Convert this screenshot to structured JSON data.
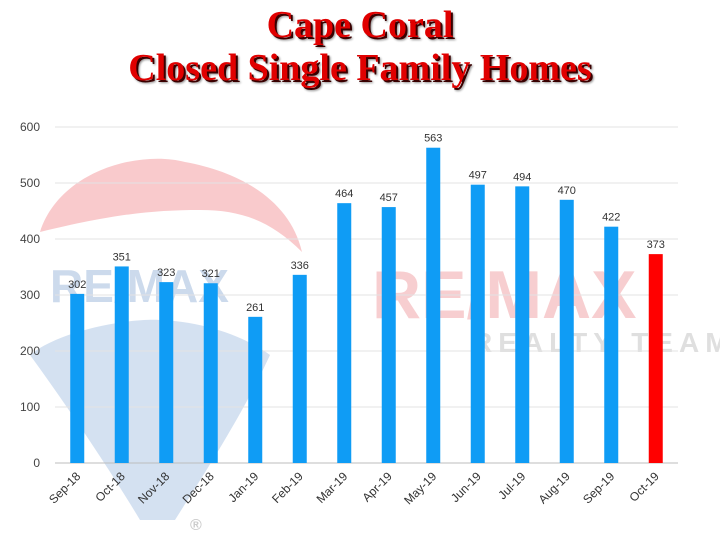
{
  "chart_data": {
    "type": "bar",
    "title_line1": "Cape Coral",
    "title_line2": "Closed Single Family Homes",
    "categories": [
      "Sep-18",
      "Oct-18",
      "Nov-18",
      "Dec-18",
      "Jan-19",
      "Feb-19",
      "Mar-19",
      "Apr-19",
      "May-19",
      "Jun-19",
      "Jul-19",
      "Aug-19",
      "Sep-19",
      "Oct-19"
    ],
    "values": [
      302,
      351,
      323,
      321,
      261,
      336,
      464,
      457,
      563,
      497,
      494,
      470,
      422,
      373
    ],
    "ylim": [
      0,
      600
    ],
    "yticks": [
      0,
      100,
      200,
      300,
      400,
      500,
      600
    ],
    "grid": true,
    "colors": {
      "bar": "#0f9cf5",
      "highlight": "#ff0000",
      "title": "#e00000"
    },
    "highlight_index": 13
  },
  "watermark": {
    "brand_left": "RE/MAX",
    "brand_right": "RE/MAX",
    "subtitle": "REALTY TEAM",
    "registered": "®"
  }
}
